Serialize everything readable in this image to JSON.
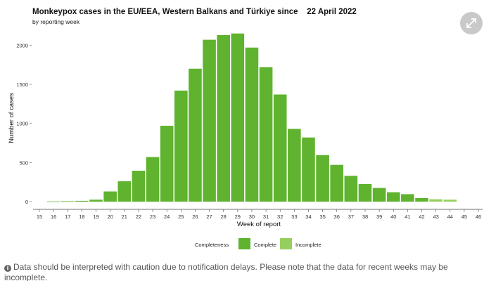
{
  "expand_icon": "expand-arrows-icon",
  "info_icon": "info-circle-icon",
  "footnote": {
    "text": "Data should be interpreted with caution due to notification delays. Please note that the data for recent weeks may be incomplete."
  },
  "colors": {
    "complete": "#5fb32e",
    "incomplete": "#96cf5e",
    "expand_button_bg": "#c9c9c9"
  },
  "chart_data": {
    "type": "bar",
    "title": "Monkeypox cases in the EU/EEA, Western Balkans and Türkiye since    22 April 2022",
    "subtitle": "by reporting week",
    "xlabel": "Week of report",
    "ylabel": "Number of cases",
    "ylim": [
      0,
      2300
    ],
    "yticks": [
      0,
      500,
      1000,
      1500,
      2000
    ],
    "grid": false,
    "legend": {
      "title": "Completeness",
      "placement": "bottom"
    },
    "categories": [
      "15",
      "16",
      "17",
      "18",
      "19",
      "20",
      "21",
      "22",
      "23",
      "24",
      "25",
      "26",
      "27",
      "28",
      "29",
      "30",
      "31",
      "32",
      "33",
      "34",
      "35",
      "36",
      "37",
      "38",
      "39",
      "40",
      "41",
      "42",
      "43",
      "44",
      "45",
      "46"
    ],
    "series": [
      {
        "name": "Complete",
        "values": [
          0,
          2,
          5,
          10,
          25,
          130,
          260,
          395,
          570,
          970,
          1420,
          1700,
          2070,
          2130,
          2150,
          1970,
          1720,
          1370,
          930,
          820,
          595,
          470,
          330,
          225,
          175,
          120,
          95,
          45,
          0,
          0,
          0,
          0
        ]
      },
      {
        "name": "Incomplete",
        "values": [
          0,
          0,
          0,
          0,
          0,
          0,
          0,
          0,
          0,
          0,
          0,
          0,
          0,
          0,
          0,
          0,
          0,
          0,
          0,
          0,
          0,
          0,
          0,
          0,
          0,
          0,
          0,
          0,
          30,
          25,
          0,
          0
        ]
      }
    ]
  }
}
